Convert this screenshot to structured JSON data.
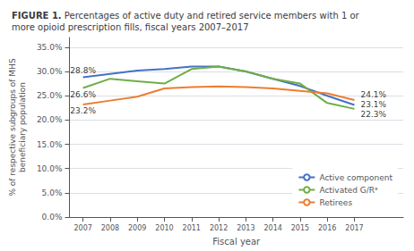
{
  "chart_data": {
    "type": "line",
    "title": "FIGURE 1. Percentages of active duty and retired service members with 1 or\nmore opioid prescription fills, fiscal years 2007–2017",
    "x": [
      2007,
      2008,
      2009,
      2010,
      2011,
      2012,
      2013,
      2014,
      2015,
      2016,
      2017
    ],
    "series": [
      {
        "name": "Active component",
        "color": "#4472C4",
        "values": [
          28.8,
          29.5,
          30.2,
          30.5,
          31.0,
          31.0,
          30.0,
          28.5,
          27.0,
          25.0,
          23.1
        ]
      },
      {
        "name": "Activated G/Rᵃ",
        "color": "#70AD47",
        "values": [
          26.6,
          28.5,
          28.0,
          27.5,
          30.5,
          31.0,
          30.0,
          28.5,
          27.5,
          23.5,
          22.3
        ]
      },
      {
        "name": "Retirees",
        "color": "#ED7D31",
        "values": [
          23.2,
          24.0,
          24.8,
          26.5,
          26.8,
          26.9,
          26.8,
          26.5,
          26.0,
          25.5,
          24.1
        ]
      }
    ],
    "xlabel": "Fiscal year",
    "ylabel": "% of respective subgroups of MHS\nbeneficiary population",
    "xlim": [
      2006.5,
      2018.8
    ],
    "xticks": [
      2007,
      2008,
      2009,
      2010,
      2011,
      2012,
      2013,
      2014,
      2015,
      2016,
      2017
    ],
    "ylim": [
      0,
      37
    ],
    "yticks": [
      {
        "value": 0,
        "label": "0.0%"
      },
      {
        "value": 5,
        "label": "5.0%"
      },
      {
        "value": 10,
        "label": "10.0%"
      },
      {
        "value": 15,
        "label": "15.0%"
      },
      {
        "value": 20,
        "label": "20.0%"
      },
      {
        "value": 25,
        "label": "25.0%"
      },
      {
        "value": 30,
        "label": "30.0%"
      },
      {
        "value": 35,
        "label": "35.0%"
      }
    ],
    "grid": true,
    "legend": "lower right",
    "annotations": [
      {
        "text": "28.8%",
        "x": 2007,
        "y": 28.8
      },
      {
        "text": "26.6%",
        "x": 2007,
        "y": 26.6
      },
      {
        "text": "23.2%",
        "x": 2007,
        "y": 23.2
      },
      {
        "text": "24.1%",
        "x": 2017,
        "y": 24.1
      },
      {
        "text": "23.1%",
        "x": 2017,
        "y": 23.1
      },
      {
        "text": "22.3%",
        "x": 2017,
        "y": 22.3
      }
    ]
  }
}
